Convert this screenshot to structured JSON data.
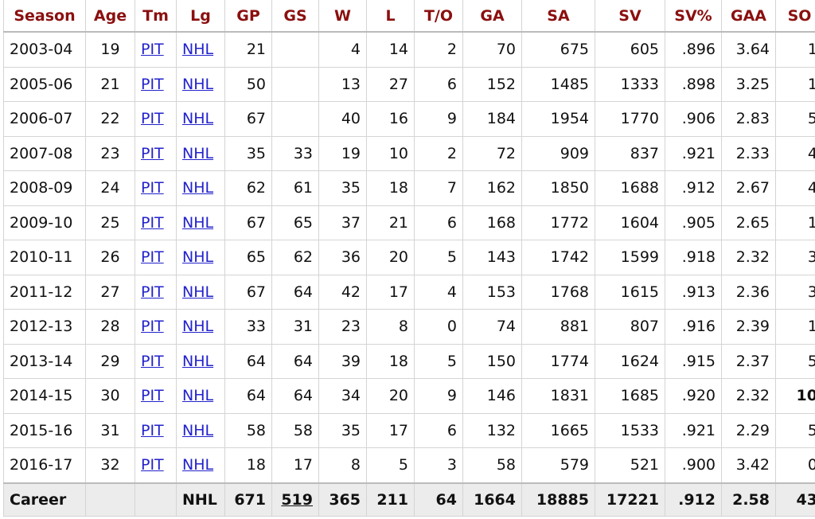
{
  "table": {
    "header": [
      "Season",
      "Age",
      "Tm",
      "Lg",
      "GP",
      "GS",
      "W",
      "L",
      "T/O",
      "GA",
      "SA",
      "SV",
      "SV%",
      "GAA",
      "SO"
    ],
    "rows": [
      [
        "2003-04",
        "19",
        "PIT",
        "NHL",
        "21",
        null,
        "4",
        "14",
        "2",
        "70",
        "675",
        "605",
        ".896",
        "3.64",
        "1"
      ],
      [
        "2005-06",
        "21",
        "PIT",
        "NHL",
        "50",
        null,
        "13",
        "27",
        "6",
        "152",
        "1485",
        "1333",
        ".898",
        "3.25",
        "1"
      ],
      [
        "2006-07",
        "22",
        "PIT",
        "NHL",
        "67",
        null,
        "40",
        "16",
        "9",
        "184",
        "1954",
        "1770",
        ".906",
        "2.83",
        "5"
      ],
      [
        "2007-08",
        "23",
        "PIT",
        "NHL",
        "35",
        "33",
        "19",
        "10",
        "2",
        "72",
        "909",
        "837",
        ".921",
        "2.33",
        "4"
      ],
      [
        "2008-09",
        "24",
        "PIT",
        "NHL",
        "62",
        "61",
        "35",
        "18",
        "7",
        "162",
        "1850",
        "1688",
        ".912",
        "2.67",
        "4"
      ],
      [
        "2009-10",
        "25",
        "PIT",
        "NHL",
        "67",
        "65",
        "37",
        "21",
        "6",
        "168",
        "1772",
        "1604",
        ".905",
        "2.65",
        "1"
      ],
      [
        "2010-11",
        "26",
        "PIT",
        "NHL",
        "65",
        "62",
        "36",
        "20",
        "5",
        "143",
        "1742",
        "1599",
        ".918",
        "2.32",
        "3"
      ],
      [
        "2011-12",
        "27",
        "PIT",
        "NHL",
        "67",
        "64",
        "42",
        "17",
        "4",
        "153",
        "1768",
        "1615",
        ".913",
        "2.36",
        "3"
      ],
      [
        "2012-13",
        "28",
        "PIT",
        "NHL",
        "33",
        "31",
        "23",
        "8",
        "0",
        "74",
        "881",
        "807",
        ".916",
        "2.39",
        "1"
      ],
      [
        "2013-14",
        "29",
        "PIT",
        "NHL",
        "64",
        "64",
        "39",
        "18",
        "5",
        "150",
        "1774",
        "1624",
        ".915",
        "2.37",
        "5"
      ],
      [
        "2014-15",
        "30",
        "PIT",
        "NHL",
        "64",
        "64",
        "34",
        "20",
        "9",
        "146",
        "1831",
        "1685",
        ".920",
        "2.32",
        "10"
      ],
      [
        "2015-16",
        "31",
        "PIT",
        "NHL",
        "58",
        "58",
        "35",
        "17",
        "6",
        "132",
        "1665",
        "1533",
        ".921",
        "2.29",
        "5"
      ],
      [
        "2016-17",
        "32",
        "PIT",
        "NHL",
        "18",
        "17",
        "8",
        "5",
        "3",
        "58",
        "579",
        "521",
        ".900",
        "3.42",
        "0"
      ]
    ],
    "footer": [
      "Career",
      null,
      null,
      "NHL",
      "671",
      "519",
      "365",
      "211",
      "64",
      "1664",
      "18885",
      "17221",
      ".912",
      "2.58",
      "43"
    ]
  }
}
